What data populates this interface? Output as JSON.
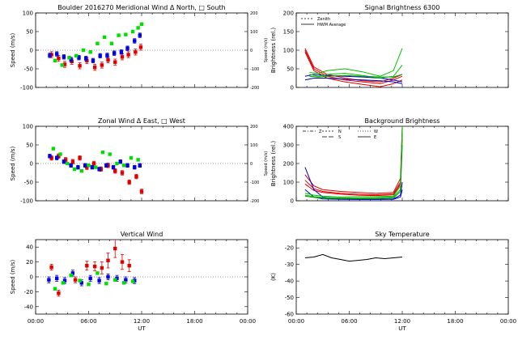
{
  "figure": {
    "time_label": "UT",
    "time_ticks": [
      "00:00",
      "06:00",
      "12:00",
      "18:00",
      "00:00"
    ]
  },
  "chart_data": [
    {
      "id": "meridional",
      "type": "scatter",
      "title": "Boulder   2016270     Meridional Wind   Δ North, □ South",
      "ylabel": "Speed (m/s)",
      "ylabel_right": "Speed (m/s)",
      "xlabel": "",
      "xlim": [
        0,
        24
      ],
      "ylim": [
        -100,
        100
      ],
      "yticks": [
        "100",
        "50",
        "0",
        "-50",
        "-100"
      ],
      "right_yticks": [
        "200",
        "100",
        "0",
        "-100",
        "-200"
      ],
      "show_xlabels": false,
      "series": [
        {
          "color": "#e00000",
          "x": [
            1.8,
            2.6,
            3.3,
            4.1,
            5.0,
            5.8,
            6.7,
            7.5,
            8.2,
            9.0,
            9.8,
            10.5,
            11.3,
            11.9
          ],
          "y": [
            -12,
            -22,
            -38,
            -30,
            -42,
            -28,
            -46,
            -40,
            -26,
            -32,
            -18,
            -12,
            -5,
            8
          ],
          "err": [
            8,
            8,
            8,
            8,
            8,
            8,
            8,
            8,
            8,
            8,
            8,
            8,
            8,
            8
          ]
        },
        {
          "color": "#0000e0",
          "x": [
            1.6,
            2.4,
            3.2,
            4.0,
            4.9,
            5.7,
            6.5,
            7.3,
            8.1,
            8.9,
            9.7,
            10.4,
            11.2,
            11.8
          ],
          "y": [
            -14,
            -10,
            -18,
            -25,
            -20,
            -22,
            -28,
            -15,
            -14,
            -8,
            -5,
            5,
            25,
            40
          ],
          "err": [
            6,
            6,
            6,
            6,
            6,
            6,
            6,
            6,
            6,
            6,
            6,
            6,
            6,
            6
          ]
        },
        {
          "color": "#00e000",
          "x": [
            2.2,
            3.0,
            3.8,
            4.6,
            5.4,
            6.2,
            7.0,
            7.8,
            8.6,
            9.4,
            10.2,
            11.0,
            11.6,
            12.0
          ],
          "y": [
            -28,
            -40,
            -20,
            -15,
            0,
            -5,
            18,
            35,
            18,
            40,
            42,
            50,
            60,
            70
          ],
          "err": [
            0,
            0,
            0,
            0,
            0,
            0,
            0,
            0,
            0,
            0,
            0,
            0,
            0,
            0
          ]
        }
      ]
    },
    {
      "id": "brightness",
      "type": "line",
      "title": "Signal Brightness        6300",
      "ylabel": "Brightness (rel.)",
      "xlabel": "",
      "xlim": [
        0,
        24
      ],
      "ylim": [
        0,
        200
      ],
      "yticks": [
        "200",
        "150",
        "100",
        "50",
        "0"
      ],
      "show_xlabels": false,
      "legend": [
        {
          "label": "Zenith",
          "dash": "2,2"
        },
        {
          "label": "HWM Average",
          "dash": ""
        }
      ],
      "series": [
        {
          "color": "#e00000",
          "x": [
            1.0,
            2.0,
            3.5,
            5.5,
            7.5,
            9.5,
            11.0,
            12.0
          ],
          "y": [
            100,
            50,
            30,
            20,
            15,
            10,
            20,
            30
          ]
        },
        {
          "color": "#e00000",
          "x": [
            1.0,
            2.0,
            3.5,
            5.5,
            7.5,
            9.5,
            11.0,
            12.0
          ],
          "y": [
            95,
            45,
            25,
            15,
            8,
            2,
            10,
            20
          ]
        },
        {
          "color": "#e00000",
          "x": [
            1.0,
            2.0,
            3.5,
            5.5,
            7.5,
            9.5,
            11.0,
            12.0
          ],
          "y": [
            105,
            55,
            35,
            25,
            18,
            15,
            25,
            35
          ]
        },
        {
          "color": "#0000c0",
          "x": [
            1.0,
            2.0,
            3.5,
            5.5,
            7.5,
            9.5,
            11.0,
            12.0
          ],
          "y": [
            30,
            35,
            32,
            30,
            28,
            25,
            20,
            15
          ]
        },
        {
          "color": "#0000c0",
          "x": [
            1.0,
            2.0,
            3.5,
            5.5,
            7.5,
            9.5,
            11.0,
            12.0
          ],
          "y": [
            20,
            25,
            25,
            22,
            20,
            18,
            15,
            10
          ]
        },
        {
          "color": "#00c000",
          "x": [
            1.5,
            2.5,
            3.5,
            5.5,
            7.5,
            9.5,
            11.0,
            12.0
          ],
          "y": [
            40,
            38,
            45,
            50,
            42,
            30,
            45,
            105
          ]
        },
        {
          "color": "#00c000",
          "x": [
            1.5,
            2.5,
            3.5,
            5.5,
            7.5,
            9.5,
            11.0,
            12.0
          ],
          "y": [
            35,
            30,
            35,
            38,
            32,
            25,
            30,
            60
          ]
        },
        {
          "color": "#00a000",
          "x": [
            1.5,
            2.5,
            3.5,
            5.5,
            7.5,
            9.5,
            11.0,
            12.0
          ],
          "y": [
            30,
            28,
            30,
            32,
            30,
            28,
            28,
            35
          ]
        }
      ]
    },
    {
      "id": "zonal",
      "type": "scatter",
      "title": "Zonal Wind       Δ East, □ West",
      "ylabel": "Speed (m/s)",
      "ylabel_right": "Speed (m/s)",
      "xlabel": "",
      "xlim": [
        0,
        24
      ],
      "ylim": [
        -100,
        100
      ],
      "yticks": [
        "100",
        "50",
        "0",
        "-50",
        "-100"
      ],
      "right_yticks": [
        "200",
        "100",
        "0",
        "-100",
        "-200"
      ],
      "show_xlabels": false,
      "series": [
        {
          "color": "#e00000",
          "x": [
            1.8,
            2.6,
            3.4,
            4.2,
            5.0,
            5.8,
            6.6,
            7.4,
            8.2,
            9.0,
            9.8,
            10.6,
            11.4,
            12.0
          ],
          "y": [
            15,
            20,
            10,
            5,
            15,
            -10,
            0,
            -15,
            -5,
            -20,
            -25,
            -50,
            -35,
            -75
          ],
          "err": [
            6,
            6,
            6,
            6,
            6,
            6,
            6,
            6,
            6,
            6,
            6,
            6,
            6,
            6
          ]
        },
        {
          "color": "#0000e0",
          "x": [
            1.6,
            2.4,
            3.2,
            4.0,
            4.8,
            5.6,
            6.4,
            7.2,
            8.0,
            8.8,
            9.6,
            10.4,
            11.2,
            11.8
          ],
          "y": [
            20,
            15,
            5,
            -5,
            -10,
            -5,
            -10,
            -15,
            -5,
            -10,
            5,
            -5,
            -10,
            -5
          ],
          "err": [
            5,
            5,
            5,
            5,
            5,
            5,
            5,
            5,
            5,
            5,
            5,
            5,
            5,
            5
          ]
        },
        {
          "color": "#00e000",
          "x": [
            2.0,
            2.8,
            3.6,
            4.4,
            5.2,
            6.0,
            6.8,
            7.6,
            8.4,
            9.2,
            10.0,
            10.8,
            11.6
          ],
          "y": [
            40,
            25,
            0,
            -15,
            -20,
            -5,
            -10,
            30,
            25,
            0,
            -5,
            15,
            10
          ],
          "err": [
            0,
            0,
            0,
            0,
            0,
            0,
            0,
            0,
            0,
            0,
            0,
            0,
            0
          ]
        }
      ]
    },
    {
      "id": "background",
      "type": "line",
      "title": "Background Brightness",
      "ylabel": "Brightness (rel.)",
      "xlabel": "",
      "xlim": [
        0,
        24
      ],
      "ylim": [
        0,
        400
      ],
      "yticks": [
        "400",
        "300",
        "200",
        "100",
        "0"
      ],
      "show_xlabels": false,
      "legend": [
        {
          "label": "Z",
          "dash": "4,2,1,2"
        },
        {
          "label": "N",
          "dash": "2,2"
        },
        {
          "label": "S",
          "dash": "6,2"
        },
        {
          "label": "W",
          "dash": "1,2"
        },
        {
          "label": "E",
          "dash": ""
        }
      ],
      "series": [
        {
          "color": "#e00000",
          "x": [
            1.0,
            2.0,
            3.0,
            5.0,
            7.0,
            9.0,
            11.0,
            11.8,
            12.0
          ],
          "y": [
            140,
            80,
            60,
            50,
            45,
            40,
            45,
            120,
            400
          ]
        },
        {
          "color": "#e00000",
          "x": [
            1.0,
            2.0,
            3.0,
            5.0,
            7.0,
            9.0,
            11.0,
            11.8,
            12.0
          ],
          "y": [
            110,
            65,
            50,
            40,
            35,
            32,
            38,
            100,
            360
          ]
        },
        {
          "color": "#e00000",
          "x": [
            1.0,
            2.0,
            3.0,
            5.0,
            7.0,
            9.0,
            11.0,
            11.8,
            12.0
          ],
          "y": [
            90,
            55,
            45,
            35,
            30,
            28,
            32,
            90,
            330
          ]
        },
        {
          "color": "#0000d0",
          "x": [
            1.0,
            2.0,
            3.0,
            5.0,
            7.0,
            9.0,
            11.0,
            11.8,
            12.0
          ],
          "y": [
            180,
            60,
            20,
            10,
            8,
            8,
            10,
            30,
            100
          ]
        },
        {
          "color": "#0000d0",
          "x": [
            1.0,
            2.0,
            3.0,
            5.0,
            7.0,
            9.0,
            11.0,
            11.8,
            12.0
          ],
          "y": [
            60,
            20,
            10,
            8,
            7,
            7,
            8,
            20,
            60
          ]
        },
        {
          "color": "#00c000",
          "x": [
            1.0,
            2.0,
            3.0,
            5.0,
            7.0,
            9.0,
            11.0,
            11.8,
            12.0
          ],
          "y": [
            40,
            30,
            25,
            20,
            22,
            22,
            25,
            80,
            400
          ]
        },
        {
          "color": "#00c000",
          "x": [
            1.0,
            2.0,
            3.0,
            5.0,
            7.0,
            9.0,
            11.0,
            11.8,
            12.0
          ],
          "y": [
            30,
            22,
            18,
            15,
            15,
            16,
            20,
            60,
            380
          ]
        },
        {
          "color": "#00a000",
          "x": [
            1.0,
            2.0,
            3.0,
            5.0,
            7.0,
            9.0,
            11.0,
            11.8,
            12.0
          ],
          "y": [
            25,
            18,
            15,
            12,
            12,
            12,
            15,
            50,
            300
          ]
        }
      ]
    },
    {
      "id": "vertical",
      "type": "scatter",
      "title": "Vertical Wind",
      "ylabel": "Speed (m/s)",
      "xlabel": "UT",
      "xlim": [
        0,
        24
      ],
      "ylim": [
        -50,
        50
      ],
      "yticks": [
        "40",
        "20",
        "0",
        "-20",
        "-40"
      ],
      "show_xlabels": true,
      "series": [
        {
          "color": "#e00000",
          "x": [
            1.8,
            2.6,
            4.5,
            5.8,
            6.7,
            7.5,
            8.2,
            9.0,
            9.8,
            10.6
          ],
          "y": [
            13,
            -22,
            -4,
            15,
            14,
            12,
            22,
            38,
            20,
            15
          ],
          "err": [
            4,
            4,
            4,
            6,
            6,
            8,
            10,
            12,
            10,
            8
          ]
        },
        {
          "color": "#0000e0",
          "x": [
            1.5,
            2.4,
            3.3,
            4.2,
            5.2,
            6.2,
            7.2,
            8.2,
            9.2,
            10.2,
            11.2
          ],
          "y": [
            -4,
            -2,
            -5,
            5,
            -8,
            -2,
            -5,
            0,
            -2,
            -4,
            -5
          ],
          "err": [
            4,
            4,
            4,
            4,
            4,
            4,
            4,
            4,
            4,
            4,
            4
          ]
        },
        {
          "color": "#00e000",
          "x": [
            2.2,
            3.1,
            4.0,
            5.0,
            6.0,
            7.0,
            8.0,
            9.0,
            10.0,
            11.0
          ],
          "y": [
            -16,
            -8,
            2,
            -5,
            -10,
            5,
            -9,
            -4,
            -8,
            -6
          ],
          "err": [
            0,
            0,
            0,
            0,
            0,
            0,
            0,
            0,
            0,
            0
          ]
        }
      ]
    },
    {
      "id": "skytemp",
      "type": "line",
      "title": "Sky Temperature",
      "ylabel": "(K)",
      "xlabel": "UT",
      "xlim": [
        0,
        24
      ],
      "ylim": [
        -60,
        -15
      ],
      "yticks": [
        "-20",
        "-30",
        "-40",
        "-50",
        "-60"
      ],
      "show_xlabels": true,
      "series": [
        {
          "color": "#000000",
          "x": [
            1.0,
            2.0,
            3.0,
            4.0,
            5.0,
            6.0,
            7.0,
            8.0,
            9.0,
            10.0,
            11.0,
            12.0
          ],
          "y": [
            -26,
            -25.5,
            -24,
            -26,
            -27,
            -28,
            -27.5,
            -27,
            -26,
            -26.5,
            -26,
            -25.5
          ]
        }
      ]
    }
  ]
}
